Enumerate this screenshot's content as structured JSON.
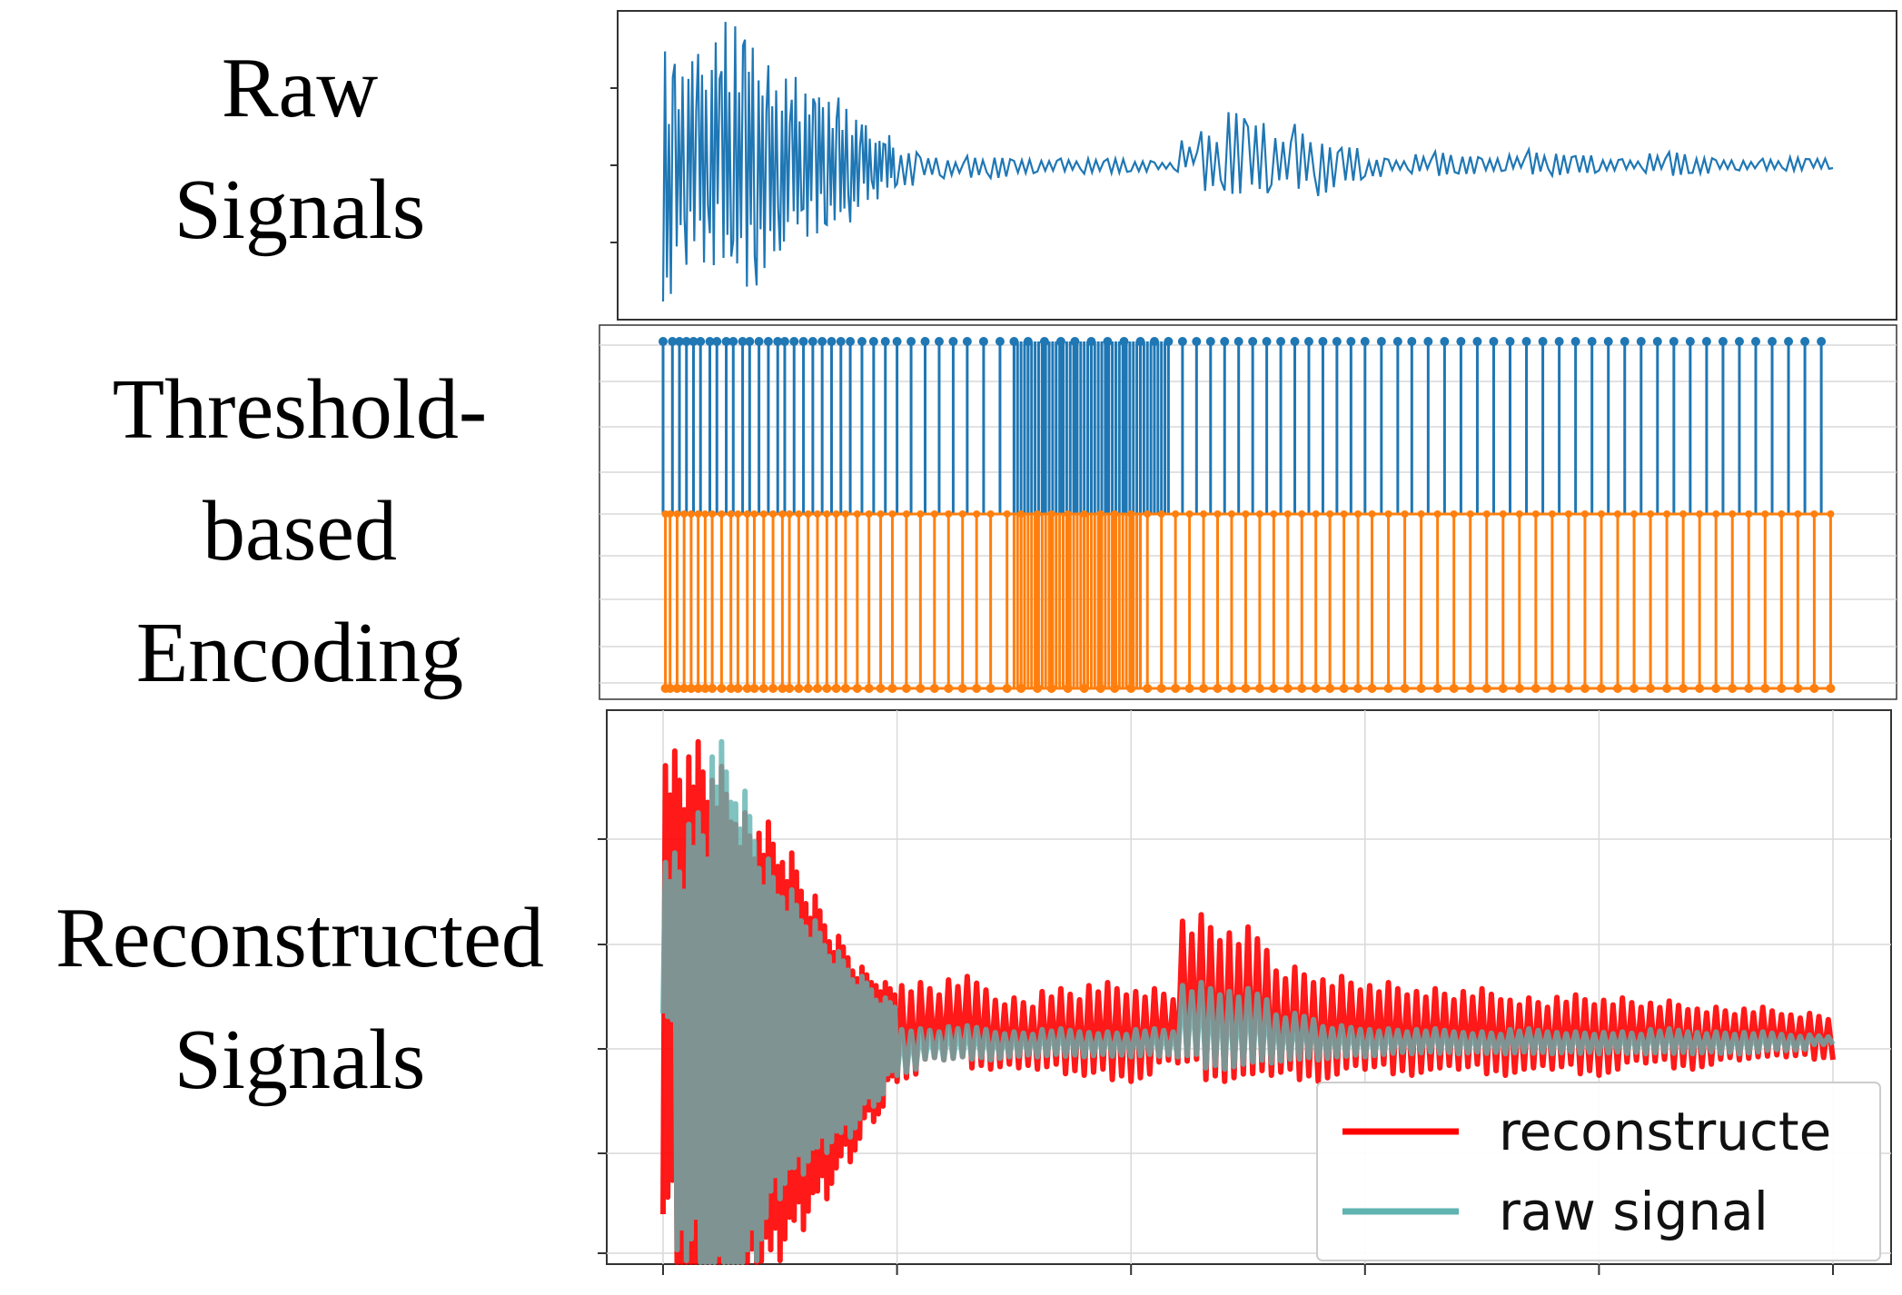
{
  "labels": {
    "raw": [
      "Raw",
      "Signals"
    ],
    "encoding": [
      "Threshold-",
      "based",
      "Encoding"
    ],
    "reconstructed": [
      "Reconstructed",
      "Signals"
    ]
  },
  "colors": {
    "raw_line": "#1f77b4",
    "up_spikes": "#1f77b4",
    "down_spikes": "#ff7f0e",
    "reconstructed": "#ff0000",
    "raw_overlay": "#5fb3b0",
    "grid": "#d9d9d9",
    "axis": "#333333"
  },
  "chart_data": [
    {
      "type": "line",
      "title": "Raw Signals",
      "xlim": [
        0,
        500
      ],
      "ylim": [
        -1.0,
        1.0
      ],
      "series": [
        {
          "name": "raw signal",
          "x": [
            0,
            5,
            10,
            15,
            20,
            25,
            30,
            35,
            40,
            45,
            50,
            55,
            60,
            65,
            70,
            75,
            80,
            85,
            90,
            95,
            100,
            110,
            120,
            130,
            140,
            150,
            160,
            170,
            180,
            190,
            200,
            210,
            220,
            230,
            240,
            250,
            260,
            270,
            280,
            290,
            300,
            310,
            320,
            330,
            340,
            350,
            360,
            370,
            380,
            390,
            400,
            410,
            420,
            430,
            440,
            450,
            460,
            470,
            480,
            490,
            500
          ],
          "values": [
            -1.0,
            0.62,
            -0.55,
            0.75,
            -0.62,
            0.92,
            -0.7,
            0.88,
            -0.72,
            0.6,
            -0.6,
            0.58,
            -0.45,
            0.52,
            -0.4,
            0.4,
            -0.35,
            0.3,
            -0.22,
            0.2,
            -0.15,
            0.08,
            -0.1,
            0.05,
            -0.08,
            0.04,
            -0.06,
            0.05,
            -0.05,
            0.04,
            -0.05,
            0.03,
            -0.04,
            0.2,
            -0.15,
            0.35,
            -0.2,
            0.28,
            -0.18,
            0.12,
            -0.1,
            0.05,
            -0.05,
            0.08,
            -0.06,
            0.06,
            -0.05,
            0.1,
            -0.06,
            0.07,
            -0.05,
            0.05,
            -0.04,
            0.08,
            -0.06,
            0.05,
            -0.04,
            0.04,
            -0.03,
            0.05,
            -0.02
          ]
        }
      ]
    },
    {
      "type": "spike_raster",
      "title": "Threshold-based Encoding",
      "xlim": [
        0,
        500
      ],
      "series": [
        {
          "name": "up spikes",
          "level": 1,
          "times": [
            0,
            4,
            7,
            10,
            13,
            16,
            20,
            23,
            27,
            30,
            34,
            37,
            41,
            45,
            49,
            52,
            56,
            60,
            64,
            68,
            72,
            76,
            80,
            85,
            90,
            95,
            100,
            106,
            112,
            118,
            124,
            130,
            137,
            144,
            150,
            156,
            163,
            170,
            176,
            183,
            190,
            197,
            204,
            210,
            216,
            222,
            228,
            234,
            240,
            246,
            252,
            258,
            264,
            270,
            276,
            282,
            288,
            294,
            300,
            307,
            314,
            320,
            327,
            334,
            341,
            348,
            355,
            362,
            369,
            376,
            383,
            390,
            397,
            404,
            411,
            418,
            425,
            432,
            439,
            446,
            453,
            460,
            467,
            474,
            481,
            488,
            495
          ]
        },
        {
          "name": "down spikes",
          "level": -1,
          "times": [
            1,
            3,
            6,
            9,
            12,
            15,
            18,
            21,
            25,
            29,
            32,
            36,
            39,
            43,
            47,
            51,
            54,
            58,
            62,
            66,
            70,
            74,
            78,
            83,
            88,
            93,
            98,
            104,
            110,
            116,
            122,
            128,
            134,
            140,
            147,
            153,
            160,
            166,
            173,
            180,
            187,
            193,
            200,
            207,
            213,
            219,
            225,
            231,
            237,
            243,
            249,
            255,
            261,
            267,
            273,
            279,
            285,
            291,
            297,
            303,
            310,
            317,
            324,
            331,
            338,
            345,
            352,
            359,
            366,
            373,
            380,
            387,
            394,
            401,
            408,
            415,
            422,
            429,
            436,
            443,
            450,
            457,
            464,
            471,
            478,
            485,
            492,
            499
          ]
        }
      ]
    },
    {
      "type": "line",
      "title": "Reconstructed Signals",
      "xlim": [
        0,
        500
      ],
      "ylim": [
        -1.0,
        1.0
      ],
      "legend": {
        "position": "lower-right",
        "entries": [
          "reconstructe",
          "raw signal"
        ]
      },
      "series": [
        {
          "name": "reconstructe",
          "x": [
            0,
            5,
            10,
            15,
            20,
            25,
            30,
            35,
            40,
            45,
            50,
            55,
            60,
            65,
            70,
            75,
            80,
            85,
            90,
            95,
            100,
            110,
            120,
            130,
            140,
            150,
            160,
            170,
            180,
            190,
            200,
            210,
            220,
            230,
            240,
            250,
            260,
            270,
            280,
            290,
            300,
            310,
            320,
            330,
            340,
            350,
            360,
            370,
            380,
            390,
            400,
            410,
            420,
            430,
            440,
            450,
            460,
            470,
            480,
            490,
            500
          ],
          "values": [
            -0.55,
            0.95,
            -1.0,
            0.98,
            -0.9,
            0.9,
            -0.9,
            0.75,
            -0.78,
            0.72,
            -0.7,
            0.62,
            -0.6,
            0.48,
            -0.5,
            0.35,
            -0.38,
            0.25,
            -0.25,
            0.2,
            -0.12,
            0.2,
            -0.05,
            0.22,
            -0.08,
            0.15,
            -0.08,
            0.18,
            -0.1,
            0.2,
            -0.12,
            0.18,
            -0.06,
            0.42,
            -0.12,
            0.38,
            -0.1,
            0.25,
            -0.12,
            0.22,
            -0.08,
            0.2,
            -0.1,
            0.18,
            -0.08,
            0.18,
            -0.1,
            0.15,
            -0.08,
            0.16,
            -0.1,
            0.15,
            -0.06,
            0.14,
            -0.08,
            0.12,
            -0.05,
            0.12,
            -0.04,
            0.1,
            -0.05
          ]
        },
        {
          "name": "raw signal",
          "x": [
            0,
            5,
            10,
            15,
            20,
            25,
            30,
            35,
            40,
            45,
            50,
            55,
            60,
            65,
            70,
            75,
            80,
            85,
            90,
            95,
            100,
            110,
            120,
            130,
            140,
            150,
            160,
            170,
            180,
            190,
            200,
            210,
            220,
            230,
            240,
            250,
            260,
            270,
            280,
            290,
            300,
            310,
            320,
            330,
            340,
            350,
            360,
            370,
            380,
            390,
            400,
            410,
            420,
            430,
            440,
            450,
            460,
            470,
            480,
            490,
            500
          ],
          "values": [
            0.1,
            0.62,
            -0.7,
            0.75,
            -0.85,
            0.98,
            -0.95,
            0.82,
            -0.7,
            0.6,
            -0.5,
            0.5,
            -0.42,
            0.4,
            -0.35,
            0.3,
            -0.3,
            0.22,
            -0.2,
            0.15,
            -0.1,
            0.05,
            -0.05,
            0.06,
            -0.05,
            0.04,
            -0.04,
            0.05,
            -0.04,
            0.04,
            -0.04,
            0.05,
            -0.04,
            0.2,
            -0.08,
            0.18,
            -0.06,
            0.1,
            -0.05,
            0.06,
            -0.04,
            0.05,
            -0.03,
            0.05,
            -0.03,
            0.04,
            -0.03,
            0.05,
            -0.03,
            0.04,
            -0.03,
            0.04,
            -0.03,
            0.05,
            -0.03,
            0.04,
            -0.03,
            0.04,
            -0.02,
            0.03,
            0.0
          ]
        }
      ]
    }
  ]
}
